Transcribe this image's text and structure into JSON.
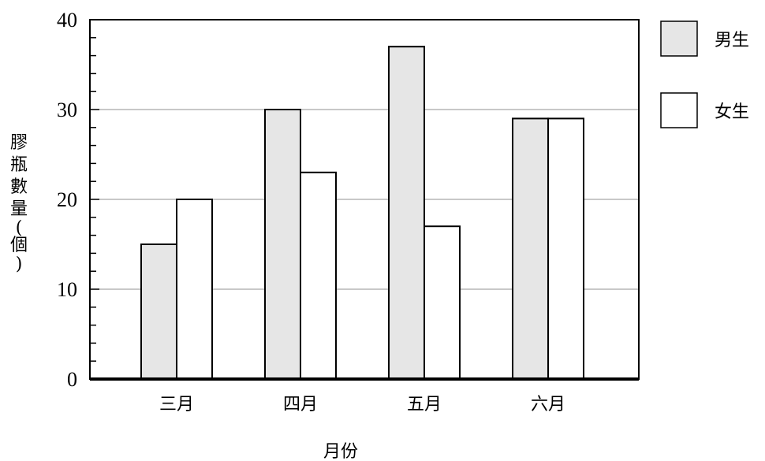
{
  "chart_data": {
    "type": "bar",
    "categories": [
      "三月",
      "四月",
      "五月",
      "六月"
    ],
    "series": [
      {
        "name": "男生",
        "values": [
          15,
          30,
          37,
          29
        ],
        "color": "#e6e6e6"
      },
      {
        "name": "女生",
        "values": [
          20,
          23,
          17,
          29
        ],
        "color": "#ffffff"
      }
    ],
    "xlabel": "月份",
    "ylabel": "膠瓶數量(個)",
    "ylim": [
      0,
      40
    ],
    "yticks": [
      "0",
      "10",
      "20",
      "30",
      "40"
    ],
    "grid": true,
    "legend_position": "right"
  }
}
